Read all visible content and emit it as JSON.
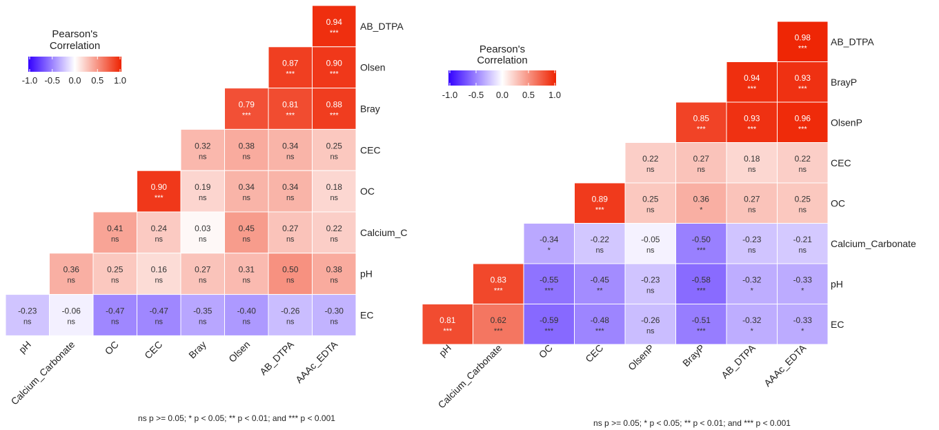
{
  "chart_data": [
    {
      "type": "heatmap",
      "legend": {
        "title_line1": "Pearson's",
        "title_line2": "Correlation",
        "ticks": [
          "-1.0",
          "-0.5",
          "0.0",
          "0.5",
          "1.0"
        ],
        "range": [
          -1,
          1
        ],
        "colors": {
          "low": "#3300ff",
          "mid": "#ffffff",
          "high": "#ee2200"
        },
        "placement": "top-left"
      },
      "x_labels": [
        "pH",
        "Calcium_Carbonate",
        "OC",
        "CEC",
        "Bray",
        "Olsen",
        "AB_DTPA",
        "AAAc_EDTA"
      ],
      "y_labels": [
        "AB_DTPA",
        "Olsen",
        "Bray",
        "CEC",
        "OC",
        "Calcium_C",
        "pH",
        "EC"
      ],
      "rows": [
        {
          "values": [
            null,
            null,
            null,
            null,
            null,
            null,
            null,
            0.94
          ],
          "sig": [
            "",
            "",
            "",
            "",
            "",
            "",
            "",
            "***"
          ]
        },
        {
          "values": [
            null,
            null,
            null,
            null,
            null,
            null,
            0.87,
            0.9
          ],
          "sig": [
            "",
            "",
            "",
            "",
            "",
            "",
            "***",
            "***"
          ]
        },
        {
          "values": [
            null,
            null,
            null,
            null,
            null,
            0.79,
            0.81,
            0.88
          ],
          "sig": [
            "",
            "",
            "",
            "",
            "",
            "***",
            "***",
            "***"
          ]
        },
        {
          "values": [
            null,
            null,
            null,
            null,
            0.32,
            0.38,
            0.34,
            0.25
          ],
          "sig": [
            "",
            "",
            "",
            "",
            "ns",
            "ns",
            "ns",
            "ns"
          ]
        },
        {
          "values": [
            null,
            null,
            null,
            0.9,
            0.19,
            0.34,
            0.34,
            0.18
          ],
          "sig": [
            "",
            "",
            "",
            "***",
            "ns",
            "ns",
            "ns",
            "ns"
          ]
        },
        {
          "values": [
            null,
            null,
            0.41,
            0.24,
            0.03,
            0.45,
            0.27,
            0.22
          ],
          "sig": [
            "",
            "",
            "ns",
            "ns",
            "ns",
            "ns",
            "ns",
            "ns"
          ]
        },
        {
          "values": [
            null,
            0.36,
            0.25,
            0.16,
            0.27,
            0.31,
            0.5,
            0.38
          ],
          "sig": [
            "",
            "ns",
            "ns",
            "ns",
            "ns",
            "ns",
            "ns",
            "ns"
          ]
        },
        {
          "values": [
            -0.23,
            -0.06,
            -0.47,
            -0.47,
            -0.35,
            -0.4,
            -0.26,
            -0.3
          ],
          "sig": [
            "ns",
            "ns",
            "ns",
            "ns",
            "ns",
            "ns",
            "ns",
            "ns"
          ]
        }
      ],
      "footnote": "ns p >= 0.05; * p < 0.05; ** p < 0.01; and *** p < 0.001"
    },
    {
      "type": "heatmap",
      "legend": {
        "title_line1": "Pearson's",
        "title_line2": "Correlation",
        "ticks": [
          "-1.0",
          "-0.5",
          "0.0",
          "0.5",
          "1.0"
        ],
        "range": [
          -1,
          1
        ],
        "colors": {
          "low": "#3300ff",
          "mid": "#ffffff",
          "high": "#ee2200"
        },
        "placement": "top-left"
      },
      "x_labels": [
        "pH",
        "Calcium_Carbonate",
        "OC",
        "CEC",
        "OlsenP",
        "BrayP",
        "AB_DTPA",
        "AAAc_EDTA"
      ],
      "y_labels": [
        "AB_DTPA",
        "BrayP",
        "OlsenP",
        "CEC",
        "OC",
        "Calcium_Carbonate",
        "pH",
        "EC"
      ],
      "rows": [
        {
          "values": [
            null,
            null,
            null,
            null,
            null,
            null,
            null,
            0.98
          ],
          "sig": [
            "",
            "",
            "",
            "",
            "",
            "",
            "",
            "***"
          ]
        },
        {
          "values": [
            null,
            null,
            null,
            null,
            null,
            null,
            0.94,
            0.93
          ],
          "sig": [
            "",
            "",
            "",
            "",
            "",
            "",
            "***",
            "***"
          ]
        },
        {
          "values": [
            null,
            null,
            null,
            null,
            null,
            0.85,
            0.93,
            0.96
          ],
          "sig": [
            "",
            "",
            "",
            "",
            "",
            "***",
            "***",
            "***"
          ]
        },
        {
          "values": [
            null,
            null,
            null,
            null,
            0.22,
            0.27,
            0.18,
            0.22
          ],
          "sig": [
            "",
            "",
            "",
            "",
            "ns",
            "ns",
            "ns",
            "ns"
          ]
        },
        {
          "values": [
            null,
            null,
            null,
            0.89,
            0.25,
            0.36,
            0.27,
            0.25
          ],
          "sig": [
            "",
            "",
            "",
            "***",
            "ns",
            "*",
            "ns",
            "ns"
          ]
        },
        {
          "values": [
            null,
            null,
            -0.34,
            -0.22,
            -0.05,
            -0.5,
            -0.23,
            -0.21
          ],
          "sig": [
            "",
            "",
            "*",
            "ns",
            "ns",
            "***",
            "ns",
            "ns"
          ]
        },
        {
          "values": [
            null,
            0.83,
            -0.55,
            -0.45,
            -0.23,
            -0.58,
            -0.32,
            -0.33
          ],
          "sig": [
            "",
            "***",
            "***",
            "**",
            "ns",
            "***",
            "*",
            "*"
          ]
        },
        {
          "values": [
            0.81,
            0.62,
            -0.59,
            -0.48,
            -0.26,
            -0.51,
            -0.32,
            -0.33
          ],
          "sig": [
            "***",
            "***",
            "***",
            "***",
            "ns",
            "***",
            "*",
            "*"
          ]
        }
      ],
      "footnote": "ns p >= 0.05; * p < 0.05; ** p < 0.01; and *** p < 0.001"
    }
  ]
}
